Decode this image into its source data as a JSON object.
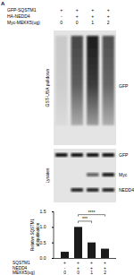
{
  "panel_label": "A",
  "conditions": [
    {
      "label": "GFP-SQSTM1",
      "values": [
        "+",
        "+",
        "+",
        "+"
      ]
    },
    {
      "label": "HA-NEDD4",
      "values": [
        "-",
        "+",
        "+",
        "+"
      ]
    },
    {
      "label": "Myc-MEKK5(ug)",
      "values": [
        "0",
        "0",
        "1",
        "2"
      ]
    }
  ],
  "blots": [
    {
      "title": "GST-UBA pulldown",
      "bands": [
        "GFP"
      ]
    },
    {
      "title": "Lysates",
      "bands": [
        "GFP",
        "Myc",
        "NEDD4"
      ]
    }
  ],
  "chart_data": {
    "type": "bar",
    "ylabel": "Relative SQSTM1 ubiquitination",
    "categories": [
      null,
      null,
      null,
      null
    ],
    "values": [
      0.2,
      1.0,
      0.5,
      0.3
    ],
    "color": "#1a1a1a",
    "ylim": [
      0,
      1.5
    ],
    "yticks": [
      {
        "value": 0,
        "label": "0.0"
      },
      {
        "value": 0.5,
        "label": "0.5"
      },
      {
        "value": 1,
        "label": "1.0"
      },
      {
        "value": 1.5,
        "label": "1.5"
      }
    ],
    "tick_labels": "y",
    "x_table": [
      {
        "label": "SQSTM1",
        "values": [
          "+",
          "+",
          "+",
          "+"
        ]
      },
      {
        "label": "NEDD4",
        "values": [
          "-",
          "+",
          "+",
          "+"
        ]
      },
      {
        "label": "MEKK5(ug)",
        "values": [
          "0",
          "0",
          "1",
          "2"
        ]
      }
    ],
    "annotations": [
      {
        "text": "****",
        "from": 1,
        "to": 3
      },
      {
        "text": "***",
        "from": 1,
        "to": 2
      }
    ]
  }
}
